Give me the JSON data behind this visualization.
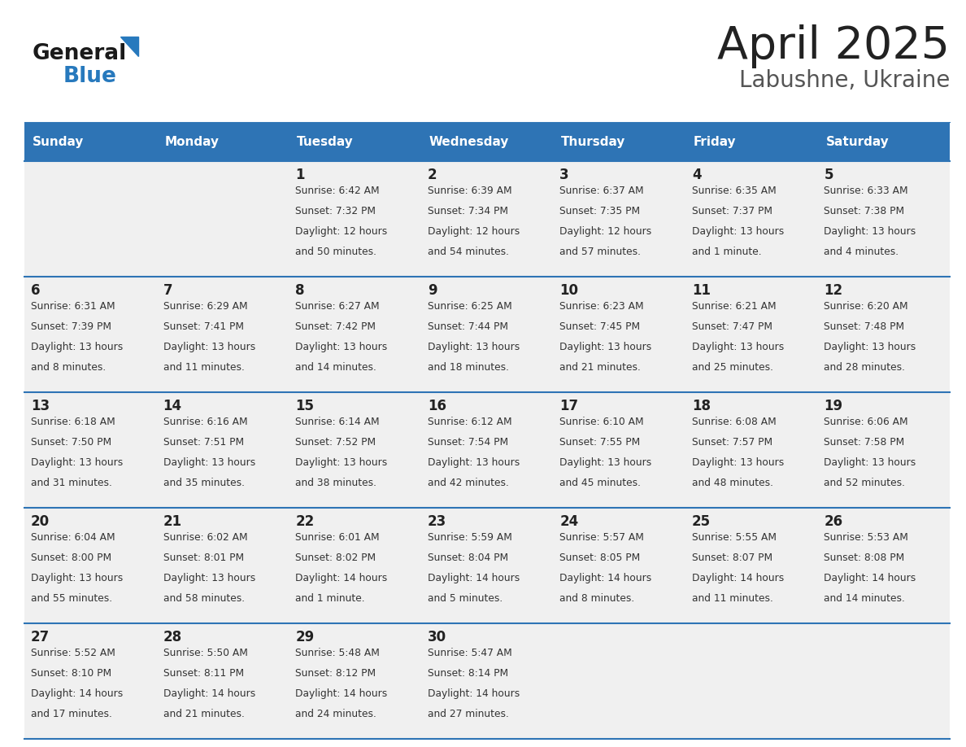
{
  "title": "April 2025",
  "subtitle": "Labushne, Ukraine",
  "header_bg": "#2e74b5",
  "header_text_color": "#ffffff",
  "cell_bg": "#f0f0f0",
  "day_names": [
    "Sunday",
    "Monday",
    "Tuesday",
    "Wednesday",
    "Thursday",
    "Friday",
    "Saturday"
  ],
  "title_color": "#222222",
  "subtitle_color": "#555555",
  "day_number_color": "#222222",
  "cell_text_color": "#333333",
  "divider_color": "#2e74b5",
  "logo_general_color": "#1a1a1a",
  "logo_blue_color": "#2779bd",
  "weeks": [
    [
      {
        "day": "",
        "sunrise": "",
        "sunset": "",
        "daylight": ""
      },
      {
        "day": "",
        "sunrise": "",
        "sunset": "",
        "daylight": ""
      },
      {
        "day": "1",
        "sunrise": "6:42 AM",
        "sunset": "7:32 PM",
        "daylight": "12 hours\nand 50 minutes."
      },
      {
        "day": "2",
        "sunrise": "6:39 AM",
        "sunset": "7:34 PM",
        "daylight": "12 hours\nand 54 minutes."
      },
      {
        "day": "3",
        "sunrise": "6:37 AM",
        "sunset": "7:35 PM",
        "daylight": "12 hours\nand 57 minutes."
      },
      {
        "day": "4",
        "sunrise": "6:35 AM",
        "sunset": "7:37 PM",
        "daylight": "13 hours\nand 1 minute."
      },
      {
        "day": "5",
        "sunrise": "6:33 AM",
        "sunset": "7:38 PM",
        "daylight": "13 hours\nand 4 minutes."
      }
    ],
    [
      {
        "day": "6",
        "sunrise": "6:31 AM",
        "sunset": "7:39 PM",
        "daylight": "13 hours\nand 8 minutes."
      },
      {
        "day": "7",
        "sunrise": "6:29 AM",
        "sunset": "7:41 PM",
        "daylight": "13 hours\nand 11 minutes."
      },
      {
        "day": "8",
        "sunrise": "6:27 AM",
        "sunset": "7:42 PM",
        "daylight": "13 hours\nand 14 minutes."
      },
      {
        "day": "9",
        "sunrise": "6:25 AM",
        "sunset": "7:44 PM",
        "daylight": "13 hours\nand 18 minutes."
      },
      {
        "day": "10",
        "sunrise": "6:23 AM",
        "sunset": "7:45 PM",
        "daylight": "13 hours\nand 21 minutes."
      },
      {
        "day": "11",
        "sunrise": "6:21 AM",
        "sunset": "7:47 PM",
        "daylight": "13 hours\nand 25 minutes."
      },
      {
        "day": "12",
        "sunrise": "6:20 AM",
        "sunset": "7:48 PM",
        "daylight": "13 hours\nand 28 minutes."
      }
    ],
    [
      {
        "day": "13",
        "sunrise": "6:18 AM",
        "sunset": "7:50 PM",
        "daylight": "13 hours\nand 31 minutes."
      },
      {
        "day": "14",
        "sunrise": "6:16 AM",
        "sunset": "7:51 PM",
        "daylight": "13 hours\nand 35 minutes."
      },
      {
        "day": "15",
        "sunrise": "6:14 AM",
        "sunset": "7:52 PM",
        "daylight": "13 hours\nand 38 minutes."
      },
      {
        "day": "16",
        "sunrise": "6:12 AM",
        "sunset": "7:54 PM",
        "daylight": "13 hours\nand 42 minutes."
      },
      {
        "day": "17",
        "sunrise": "6:10 AM",
        "sunset": "7:55 PM",
        "daylight": "13 hours\nand 45 minutes."
      },
      {
        "day": "18",
        "sunrise": "6:08 AM",
        "sunset": "7:57 PM",
        "daylight": "13 hours\nand 48 minutes."
      },
      {
        "day": "19",
        "sunrise": "6:06 AM",
        "sunset": "7:58 PM",
        "daylight": "13 hours\nand 52 minutes."
      }
    ],
    [
      {
        "day": "20",
        "sunrise": "6:04 AM",
        "sunset": "8:00 PM",
        "daylight": "13 hours\nand 55 minutes."
      },
      {
        "day": "21",
        "sunrise": "6:02 AM",
        "sunset": "8:01 PM",
        "daylight": "13 hours\nand 58 minutes."
      },
      {
        "day": "22",
        "sunrise": "6:01 AM",
        "sunset": "8:02 PM",
        "daylight": "14 hours\nand 1 minute."
      },
      {
        "day": "23",
        "sunrise": "5:59 AM",
        "sunset": "8:04 PM",
        "daylight": "14 hours\nand 5 minutes."
      },
      {
        "day": "24",
        "sunrise": "5:57 AM",
        "sunset": "8:05 PM",
        "daylight": "14 hours\nand 8 minutes."
      },
      {
        "day": "25",
        "sunrise": "5:55 AM",
        "sunset": "8:07 PM",
        "daylight": "14 hours\nand 11 minutes."
      },
      {
        "day": "26",
        "sunrise": "5:53 AM",
        "sunset": "8:08 PM",
        "daylight": "14 hours\nand 14 minutes."
      }
    ],
    [
      {
        "day": "27",
        "sunrise": "5:52 AM",
        "sunset": "8:10 PM",
        "daylight": "14 hours\nand 17 minutes."
      },
      {
        "day": "28",
        "sunrise": "5:50 AM",
        "sunset": "8:11 PM",
        "daylight": "14 hours\nand 21 minutes."
      },
      {
        "day": "29",
        "sunrise": "5:48 AM",
        "sunset": "8:12 PM",
        "daylight": "14 hours\nand 24 minutes."
      },
      {
        "day": "30",
        "sunrise": "5:47 AM",
        "sunset": "8:14 PM",
        "daylight": "14 hours\nand 27 minutes."
      },
      {
        "day": "",
        "sunrise": "",
        "sunset": "",
        "daylight": ""
      },
      {
        "day": "",
        "sunrise": "",
        "sunset": "",
        "daylight": ""
      },
      {
        "day": "",
        "sunrise": "",
        "sunset": "",
        "daylight": ""
      }
    ]
  ]
}
